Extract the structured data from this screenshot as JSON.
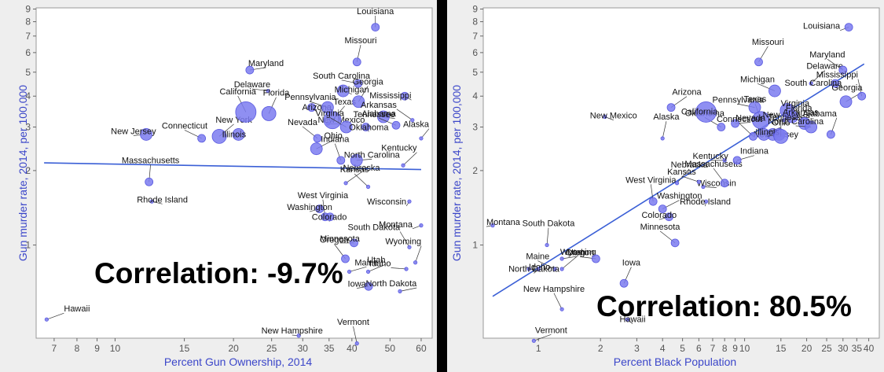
{
  "colors": {
    "point_fill": "#7b7bf0",
    "point_stroke": "#5a5ae0",
    "fit_line": "#3a5fd6",
    "axis_title": "#3b46c9",
    "panel_bg": "#ffffff"
  },
  "chart_data": [
    {
      "type": "scatter",
      "xlabel": "Percent Gun Ownership, 2014",
      "ylabel": "Gun murder rate, 2014, per 100,000",
      "annotation": "Correlation: -9.7%",
      "x_scale": "log",
      "y_scale": "log",
      "xlim": [
        6.3,
        64
      ],
      "ylim": [
        0.42,
        9.1
      ],
      "xticks": [
        7,
        8,
        9,
        10,
        15,
        20,
        25,
        30,
        35,
        40,
        50,
        60
      ],
      "yticks": [
        1,
        2,
        3,
        4,
        5,
        6,
        7,
        8,
        9
      ],
      "fit_line": [
        [
          6.6,
          2.15
        ],
        [
          60,
          2.02
        ]
      ],
      "points": [
        {
          "label": "Hawaii",
          "x": 6.7,
          "y": 0.5
        },
        {
          "label": "New Jersey",
          "x": 12,
          "y": 2.8
        },
        {
          "label": "Massachusetts",
          "x": 12.2,
          "y": 1.8
        },
        {
          "label": "Rhode Island",
          "x": 12.4,
          "y": 1.5
        },
        {
          "label": "Connecticut",
          "x": 16.6,
          "y": 2.7
        },
        {
          "label": "New York",
          "x": 18.4,
          "y": 2.75
        },
        {
          "label": "Illinois",
          "x": 20.6,
          "y": 2.8
        },
        {
          "label": "California",
          "x": 21.5,
          "y": 3.45
        },
        {
          "label": "Maryland",
          "x": 22,
          "y": 5.1
        },
        {
          "label": "Delaware",
          "x": 24.5,
          "y": 4.2
        },
        {
          "label": "Florida",
          "x": 24.6,
          "y": 3.4
        },
        {
          "label": "Arizona",
          "x": 31.6,
          "y": 3.6
        },
        {
          "label": "Nevada",
          "x": 32.7,
          "y": 2.7
        },
        {
          "label": "Ohio",
          "x": 32.5,
          "y": 2.45
        },
        {
          "label": "Washington",
          "x": 33.1,
          "y": 1.4
        },
        {
          "label": "West Virginia",
          "x": 34.2,
          "y": 1.3
        },
        {
          "label": "New Mexico",
          "x": 34.8,
          "y": 3.1
        },
        {
          "label": "Pennsylvania",
          "x": 34.7,
          "y": 3.6
        },
        {
          "label": "Texas",
          "x": 35.7,
          "y": 3.2
        },
        {
          "label": "Colorado",
          "x": 35.2,
          "y": 1.3
        },
        {
          "label": "Oregon",
          "x": 38.5,
          "y": 0.88
        },
        {
          "label": "Maine",
          "x": 39.4,
          "y": 0.78
        },
        {
          "label": "Minnesota",
          "x": 40.5,
          "y": 1.02
        },
        {
          "label": "Missouri",
          "x": 41.2,
          "y": 5.5
        },
        {
          "label": "Michigan",
          "x": 38,
          "y": 4.2
        },
        {
          "label": "Virginia",
          "x": 38.7,
          "y": 3.0
        },
        {
          "label": "Nebraska",
          "x": 38.6,
          "y": 1.78
        },
        {
          "label": "New Hampshire",
          "x": 29.3,
          "y": 0.43
        },
        {
          "label": "Indiana",
          "x": 37.5,
          "y": 2.2
        },
        {
          "label": "North Carolina",
          "x": 41.1,
          "y": 2.2
        },
        {
          "label": "South Carolina",
          "x": 41.5,
          "y": 4.5
        },
        {
          "label": "Georgia",
          "x": 41.6,
          "y": 3.8
        },
        {
          "label": "Oklahoma",
          "x": 43.4,
          "y": 3.0
        },
        {
          "label": "Kansas",
          "x": 44,
          "y": 1.72
        },
        {
          "label": "Utah",
          "x": 44,
          "y": 0.78
        },
        {
          "label": "Iowa",
          "x": 44.1,
          "y": 0.68
        },
        {
          "label": "Louisiana",
          "x": 45.9,
          "y": 7.6
        },
        {
          "label": "Tennessee",
          "x": 48.1,
          "y": 3.3
        },
        {
          "label": "Alabama",
          "x": 51.8,
          "y": 3.05
        },
        {
          "label": "Kentucky",
          "x": 54,
          "y": 2.1
        },
        {
          "label": "Wisconsin",
          "x": 56,
          "y": 1.5
        },
        {
          "label": "South Dakota",
          "x": 56,
          "y": 0.98
        },
        {
          "label": "North Dakota",
          "x": 53,
          "y": 0.65
        },
        {
          "label": "Idaho",
          "x": 55,
          "y": 0.8
        },
        {
          "label": "Wyoming",
          "x": 58,
          "y": 0.85
        },
        {
          "label": "Mississippi",
          "x": 54.5,
          "y": 4.0
        },
        {
          "label": "Arkansas",
          "x": 57,
          "y": 3.2
        },
        {
          "label": "Alaska",
          "x": 60,
          "y": 2.7
        },
        {
          "label": "Montana",
          "x": 60,
          "y": 1.2
        },
        {
          "label": "Vermont",
          "x": 41.2,
          "y": 0.4
        }
      ]
    },
    {
      "type": "scatter",
      "xlabel": "Percent Black Population",
      "ylabel": "Gun murder rate, 2014, per 100,000",
      "annotation": "Correlation: 80.5%",
      "x_scale": "log",
      "y_scale": "log",
      "xlim": [
        0.54,
        45
      ],
      "ylim": [
        0.42,
        9.1
      ],
      "xticks": [
        1,
        2,
        3,
        4,
        5,
        6,
        7,
        8,
        9,
        10,
        15,
        20,
        25,
        30,
        35,
        40
      ],
      "yticks": [
        1,
        2,
        3,
        4,
        5,
        6,
        7,
        8,
        9
      ],
      "fit_line": [
        [
          0.6,
          0.62
        ],
        [
          38,
          5.4
        ]
      ],
      "points": [
        {
          "label": "Vermont",
          "x": 0.95,
          "y": 0.41
        },
        {
          "label": "Montana",
          "x": 0.6,
          "y": 1.2
        },
        {
          "label": "South Dakota",
          "x": 1.1,
          "y": 1.0
        },
        {
          "label": "Idaho",
          "x": 0.9,
          "y": 0.8
        },
        {
          "label": "Maine",
          "x": 1.2,
          "y": 0.8
        },
        {
          "label": "Utah",
          "x": 1.3,
          "y": 0.8
        },
        {
          "label": "North Dakota",
          "x": 1.0,
          "y": 0.8
        },
        {
          "label": "New Hampshire",
          "x": 1.3,
          "y": 0.55
        },
        {
          "label": "Wyoming",
          "x": 1.3,
          "y": 0.88
        },
        {
          "label": "Oregon",
          "x": 1.9,
          "y": 0.88
        },
        {
          "label": "Iowa",
          "x": 2.6,
          "y": 0.7
        },
        {
          "label": "Hawaii",
          "x": 2.7,
          "y": 0.5
        },
        {
          "label": "Minnesota",
          "x": 4.6,
          "y": 1.02
        },
        {
          "label": "Washington",
          "x": 4.0,
          "y": 1.4
        },
        {
          "label": "Colorado",
          "x": 4.3,
          "y": 1.3
        },
        {
          "label": "West Virginia",
          "x": 3.6,
          "y": 1.5
        },
        {
          "label": "Wisconsin",
          "x": 6.3,
          "y": 1.72
        },
        {
          "label": "Kansas",
          "x": 6.0,
          "y": 1.8
        },
        {
          "label": "Nebraska",
          "x": 4.7,
          "y": 1.78
        },
        {
          "label": "Rhode Island",
          "x": 6.5,
          "y": 1.5
        },
        {
          "label": "Massachusetts",
          "x": 8.0,
          "y": 1.78
        },
        {
          "label": "Indiana",
          "x": 9.2,
          "y": 2.2
        },
        {
          "label": "Kentucky",
          "x": 8.0,
          "y": 2.2
        },
        {
          "label": "Alaska",
          "x": 4.0,
          "y": 2.7
        },
        {
          "label": "New Mexico",
          "x": 2.1,
          "y": 3.3
        },
        {
          "label": "Oklahoma",
          "x": 7.7,
          "y": 3.0
        },
        {
          "label": "Arizona",
          "x": 4.4,
          "y": 3.6
        },
        {
          "label": "California",
          "x": 6.5,
          "y": 3.45
        },
        {
          "label": "Texas",
          "x": 12.0,
          "y": 3.2
        },
        {
          "label": "Nevada",
          "x": 9.0,
          "y": 3.1
        },
        {
          "label": "Pennsylvania",
          "x": 11.2,
          "y": 3.6
        },
        {
          "label": "Missouri",
          "x": 11.7,
          "y": 5.5
        },
        {
          "label": "New Jersey",
          "x": 13.7,
          "y": 2.8
        },
        {
          "label": "Connecticut",
          "x": 11.0,
          "y": 2.75
        },
        {
          "label": "Ohio",
          "x": 12.4,
          "y": 2.8
        },
        {
          "label": "Illinois",
          "x": 14.7,
          "y": 2.8
        },
        {
          "label": "New York",
          "x": 15.0,
          "y": 2.75
        },
        {
          "label": "Florida",
          "x": 16.1,
          "y": 3.5
        },
        {
          "label": "Michigan",
          "x": 14.0,
          "y": 4.2
        },
        {
          "label": "Delaware",
          "x": 21.0,
          "y": 4.5
        },
        {
          "label": "Tennessee",
          "x": 17.0,
          "y": 3.3
        },
        {
          "label": "Virginia",
          "x": 19.5,
          "y": 3.1
        },
        {
          "label": "Arkansas",
          "x": 15.5,
          "y": 3.2
        },
        {
          "label": "North Carolina",
          "x": 21.0,
          "y": 3.0
        },
        {
          "label": "Alabama",
          "x": 26.2,
          "y": 2.8
        },
        {
          "label": "South Carolina",
          "x": 27.5,
          "y": 4.5
        },
        {
          "label": "Maryland",
          "x": 30.0,
          "y": 5.1
        },
        {
          "label": "Georgia",
          "x": 31.0,
          "y": 3.8
        },
        {
          "label": "Louisiana",
          "x": 32.0,
          "y": 7.6
        },
        {
          "label": "Mississippi",
          "x": 37.0,
          "y": 4.0
        }
      ]
    }
  ]
}
